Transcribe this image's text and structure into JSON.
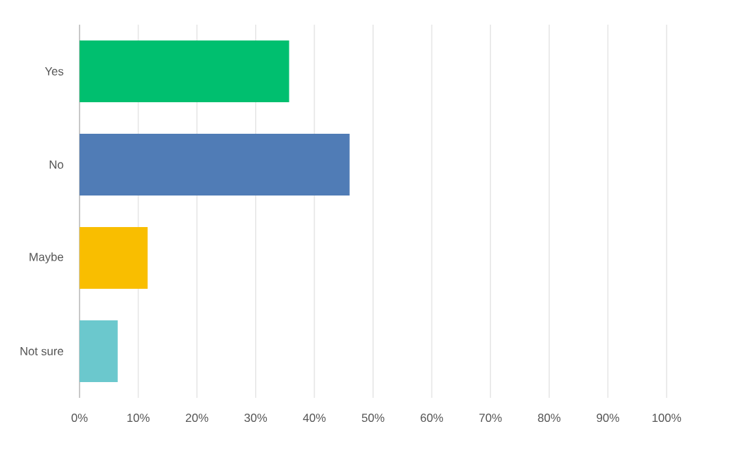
{
  "chart_data": {
    "type": "bar",
    "orientation": "horizontal",
    "categories": [
      "Yes",
      "No",
      "Maybe",
      "Not sure"
    ],
    "values": [
      35.7,
      46.0,
      11.6,
      6.5
    ],
    "colors": [
      "#00bf6f",
      "#507cb6",
      "#f9be00",
      "#6bc8cd"
    ],
    "xlim": [
      0,
      100
    ],
    "xticks": [
      {
        "value": 0,
        "label": "0%"
      },
      {
        "value": 10,
        "label": "10%"
      },
      {
        "value": 20,
        "label": "20%"
      },
      {
        "value": 30,
        "label": "30%"
      },
      {
        "value": 40,
        "label": "40%"
      },
      {
        "value": 50,
        "label": "50%"
      },
      {
        "value": 60,
        "label": "60%"
      },
      {
        "value": 70,
        "label": "70%"
      },
      {
        "value": 80,
        "label": "80%"
      },
      {
        "value": 90,
        "label": "90%"
      },
      {
        "value": 100,
        "label": "100%"
      }
    ],
    "grid": "x"
  }
}
